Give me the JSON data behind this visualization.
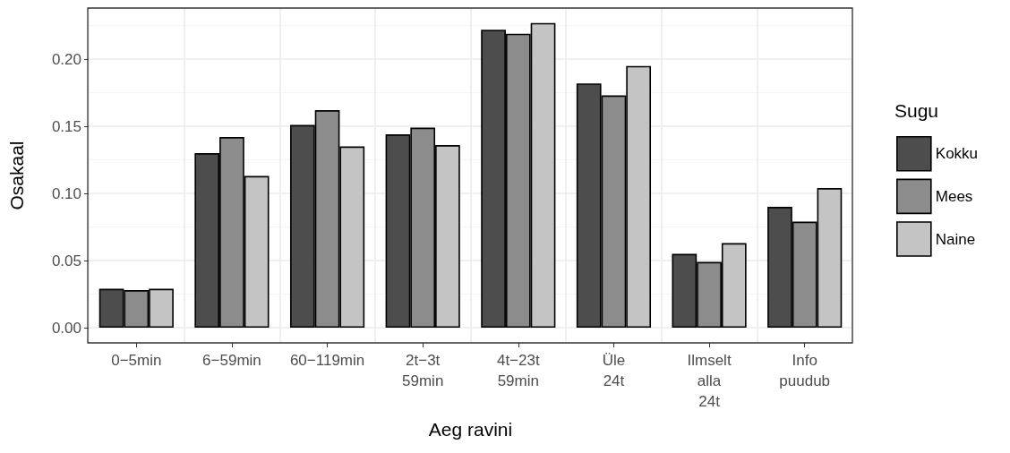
{
  "chart_data": {
    "type": "bar",
    "xlabel": "Aeg ravini",
    "ylabel": "Osakaal",
    "legend_title": "Sugu",
    "categories": [
      "0−5min",
      "6−59min",
      "60−119min",
      "2t−3t\n59min",
      "4t−23t\n59min",
      "Üle\n24t",
      "Ilmselt\nalla\n24t",
      "Info\npuudub"
    ],
    "series": [
      {
        "name": "Kokku",
        "color": "#4d4d4d",
        "values": [
          0.029,
          0.13,
          0.151,
          0.144,
          0.222,
          0.182,
          0.055,
          0.09
        ]
      },
      {
        "name": "Mees",
        "color": "#8c8c8c",
        "values": [
          0.028,
          0.142,
          0.162,
          0.149,
          0.219,
          0.173,
          0.049,
          0.079
        ]
      },
      {
        "name": "Naine",
        "color": "#c4c4c4",
        "values": [
          0.029,
          0.113,
          0.135,
          0.136,
          0.227,
          0.195,
          0.063,
          0.104
        ]
      }
    ],
    "ylim": [
      -0.0113,
      0.2381
    ],
    "yticks": [
      {
        "value": 0,
        "label": "0.00"
      },
      {
        "value": 0.05,
        "label": "0.05"
      },
      {
        "value": 0.1,
        "label": "0.10"
      },
      {
        "value": 0.15,
        "label": "0.15"
      },
      {
        "value": 0.2,
        "label": "0.20"
      }
    ],
    "grid": true,
    "legend": "right"
  }
}
